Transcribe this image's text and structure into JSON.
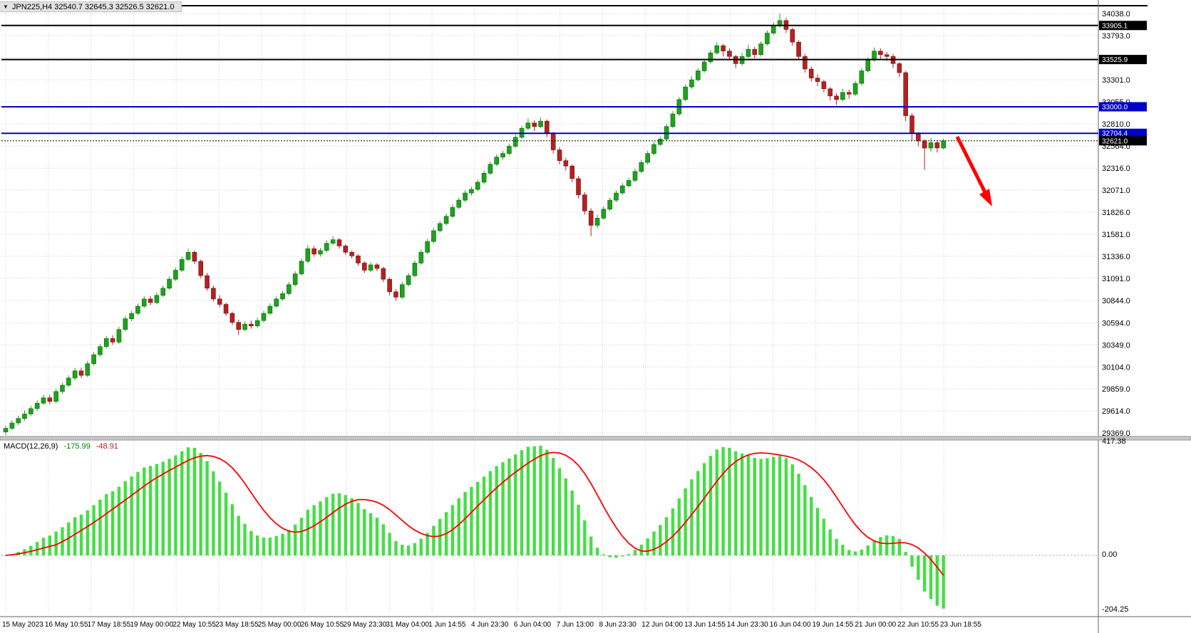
{
  "window": {
    "symbol": "JPN225",
    "timeframe": "H4",
    "symbol_readout": "JPN225,H4  32540.7 32645.3 32526.5 32621.0",
    "ohlc_readout": {
      "open": "32540.7",
      "high": "32645.3",
      "low": "32526.5",
      "close": "32621.0"
    }
  },
  "colors": {
    "background": "#FFFFFF",
    "grid": "#CFCFCF",
    "axis_text": "#000000",
    "bull": "#1FA11F",
    "bull_border": "#0B6B0B",
    "bear": "#B22222",
    "bear_border": "#7A1515",
    "macd_histogram": "#45DE45",
    "macd_signal": "#FF0000",
    "level_blue": "#0000C8",
    "level_black": "#000000",
    "arrow": "#FF0000"
  },
  "price_axis": {
    "ticks": [
      "34038.0",
      "33793.0",
      "33547.0",
      "33301.0",
      "33055.0",
      "32810.0",
      "32564.0",
      "32316.0",
      "32071.0",
      "31826.0",
      "31581.0",
      "31336.0",
      "31091.0",
      "30844.0",
      "30594.0",
      "30349.0",
      "30104.0",
      "29859.0",
      "29614.0",
      "29369.0"
    ]
  },
  "time_axis": [
    "15 May 2023",
    "16 May 10:55",
    "17 May 18:55",
    "19 May 00:00",
    "22 May 10:55",
    "23 May 18:55",
    "25 May 00:00",
    "26 May 10:55",
    "29 May 23:30",
    "31 May 04:00",
    "1 Jun 14:55",
    "4 Jun 23:30",
    "6 Jun 04:00",
    "7 Jun 13:00",
    "8 Jun 23:30",
    "12 Jun 04:00",
    "13 Jun 14:55",
    "14 Jun 23:30",
    "16 Jun 04:00",
    "19 Jun 14:55",
    "21 Jun 00:00",
    "22 Jun 10:55",
    "23 Jun 18:55"
  ],
  "chart_data": [
    {
      "type": "candlestick",
      "title": "JPN225,H4",
      "ylabel": "price",
      "y_range": [
        29330,
        34160
      ],
      "grid": true,
      "ohlc": [
        [
          29380,
          29450,
          29340,
          29420
        ],
        [
          29420,
          29510,
          29400,
          29480
        ],
        [
          29480,
          29560,
          29455,
          29530
        ],
        [
          29530,
          29620,
          29505,
          29580
        ],
        [
          29580,
          29670,
          29560,
          29640
        ],
        [
          29640,
          29730,
          29615,
          29700
        ],
        [
          29700,
          29795,
          29680,
          29760
        ],
        [
          29760,
          29790,
          29690,
          29720
        ],
        [
          29720,
          29860,
          29700,
          29830
        ],
        [
          29830,
          29930,
          29805,
          29900
        ],
        [
          29900,
          30010,
          29880,
          29980
        ],
        [
          29980,
          30090,
          29955,
          30060
        ],
        [
          30060,
          30095,
          29980,
          30010
        ],
        [
          30010,
          30170,
          29990,
          30140
        ],
        [
          30140,
          30270,
          30120,
          30240
        ],
        [
          30240,
          30360,
          30220,
          30330
        ],
        [
          30330,
          30450,
          30310,
          30420
        ],
        [
          30420,
          30455,
          30350,
          30380
        ],
        [
          30380,
          30550,
          30360,
          30520
        ],
        [
          30520,
          30670,
          30500,
          30640
        ],
        [
          30640,
          30730,
          30615,
          30700
        ],
        [
          30700,
          30810,
          30680,
          30780
        ],
        [
          30780,
          30890,
          30760,
          30860
        ],
        [
          30860,
          30895,
          30790,
          30820
        ],
        [
          30820,
          30930,
          30800,
          30900
        ],
        [
          30900,
          31010,
          30880,
          30980
        ],
        [
          30980,
          31110,
          30960,
          31080
        ],
        [
          31080,
          31210,
          31060,
          31180
        ],
        [
          31180,
          31330,
          31160,
          31300
        ],
        [
          31300,
          31420,
          31280,
          31380
        ],
        [
          31380,
          31400,
          31250,
          31280
        ],
        [
          31280,
          31300,
          31090,
          31120
        ],
        [
          31120,
          31150,
          30950,
          30980
        ],
        [
          30980,
          31010,
          30830,
          30860
        ],
        [
          30860,
          30900,
          30770,
          30800
        ],
        [
          30800,
          30820,
          30670,
          30700
        ],
        [
          30700,
          30720,
          30570,
          30600
        ],
        [
          30600,
          30630,
          30460,
          30520
        ],
        [
          30520,
          30610,
          30500,
          30580
        ],
        [
          30580,
          30620,
          30530,
          30560
        ],
        [
          30560,
          30650,
          30540,
          30620
        ],
        [
          30620,
          30730,
          30600,
          30700
        ],
        [
          30700,
          30810,
          30685,
          30780
        ],
        [
          30780,
          30890,
          30760,
          30860
        ],
        [
          30860,
          30950,
          30840,
          30920
        ],
        [
          30920,
          31050,
          30900,
          31020
        ],
        [
          31020,
          31170,
          31000,
          31140
        ],
        [
          31140,
          31310,
          31120,
          31280
        ],
        [
          31280,
          31460,
          31260,
          31420
        ],
        [
          31420,
          31450,
          31330,
          31360
        ],
        [
          31360,
          31430,
          31330,
          31400
        ],
        [
          31400,
          31510,
          31380,
          31480
        ],
        [
          31480,
          31560,
          31460,
          31520
        ],
        [
          31520,
          31540,
          31420,
          31450
        ],
        [
          31450,
          31470,
          31350,
          31380
        ],
        [
          31380,
          31400,
          31310,
          31340
        ],
        [
          31340,
          31360,
          31230,
          31260
        ],
        [
          31260,
          31280,
          31150,
          31180
        ],
        [
          31180,
          31270,
          31160,
          31240
        ],
        [
          31240,
          31260,
          31170,
          31200
        ],
        [
          31200,
          31220,
          31050,
          31080
        ],
        [
          31080,
          31100,
          30900,
          30940
        ],
        [
          30940,
          30970,
          30840,
          30880
        ],
        [
          30880,
          31050,
          30860,
          31020
        ],
        [
          31020,
          31150,
          31000,
          31120
        ],
        [
          31120,
          31290,
          31100,
          31260
        ],
        [
          31260,
          31410,
          31240,
          31380
        ],
        [
          31380,
          31530,
          31360,
          31500
        ],
        [
          31500,
          31650,
          31480,
          31620
        ],
        [
          31620,
          31730,
          31600,
          31700
        ],
        [
          31700,
          31810,
          31680,
          31780
        ],
        [
          31780,
          31910,
          31760,
          31880
        ],
        [
          31880,
          31990,
          31860,
          31960
        ],
        [
          31960,
          32070,
          31940,
          32040
        ],
        [
          32040,
          32110,
          32010,
          32080
        ],
        [
          32080,
          32190,
          32060,
          32160
        ],
        [
          32160,
          32290,
          32140,
          32260
        ],
        [
          32260,
          32390,
          32240,
          32360
        ],
        [
          32360,
          32470,
          32340,
          32440
        ],
        [
          32440,
          32510,
          32410,
          32480
        ],
        [
          32480,
          32590,
          32460,
          32560
        ],
        [
          32560,
          32690,
          32540,
          32660
        ],
        [
          32660,
          32790,
          32640,
          32760
        ],
        [
          32760,
          32870,
          32740,
          32820
        ],
        [
          32820,
          32850,
          32730,
          32780
        ],
        [
          32780,
          32880,
          32760,
          32840
        ],
        [
          32840,
          32860,
          32660,
          32700
        ],
        [
          32700,
          32720,
          32480,
          32520
        ],
        [
          32520,
          32550,
          32360,
          32400
        ],
        [
          32400,
          32430,
          32290,
          32340
        ],
        [
          32340,
          32360,
          32160,
          32200
        ],
        [
          32200,
          32230,
          31980,
          32020
        ],
        [
          32020,
          32050,
          31800,
          31840
        ],
        [
          31840,
          31870,
          31560,
          31680
        ],
        [
          31680,
          31800,
          31650,
          31760
        ],
        [
          31760,
          31890,
          31740,
          31860
        ],
        [
          31860,
          31990,
          31840,
          31960
        ],
        [
          31960,
          32070,
          31940,
          32040
        ],
        [
          32040,
          32150,
          32020,
          32120
        ],
        [
          32120,
          32210,
          32100,
          32180
        ],
        [
          32180,
          32310,
          32160,
          32280
        ],
        [
          32280,
          32410,
          32260,
          32380
        ],
        [
          32380,
          32510,
          32360,
          32480
        ],
        [
          32480,
          32610,
          32460,
          32580
        ],
        [
          32580,
          32670,
          32560,
          32640
        ],
        [
          32640,
          32810,
          32620,
          32780
        ],
        [
          32780,
          32950,
          32760,
          32920
        ],
        [
          32920,
          33110,
          32900,
          33080
        ],
        [
          33080,
          33250,
          33060,
          33220
        ],
        [
          33220,
          33340,
          33200,
          33300
        ],
        [
          33300,
          33430,
          33280,
          33400
        ],
        [
          33400,
          33530,
          33380,
          33500
        ],
        [
          33500,
          33630,
          33480,
          33600
        ],
        [
          33600,
          33720,
          33580,
          33680
        ],
        [
          33680,
          33700,
          33560,
          33620
        ],
        [
          33620,
          33650,
          33520,
          33560
        ],
        [
          33560,
          33580,
          33430,
          33480
        ],
        [
          33480,
          33600,
          33460,
          33560
        ],
        [
          33560,
          33690,
          33540,
          33640
        ],
        [
          33640,
          33670,
          33540,
          33580
        ],
        [
          33580,
          33730,
          33560,
          33700
        ],
        [
          33700,
          33850,
          33680,
          33820
        ],
        [
          33820,
          33940,
          33800,
          33900
        ],
        [
          33900,
          34038,
          33880,
          33960
        ],
        [
          33960,
          33990,
          33820,
          33860
        ],
        [
          33860,
          33880,
          33680,
          33720
        ],
        [
          33720,
          33740,
          33520,
          33560
        ],
        [
          33560,
          33590,
          33380,
          33420
        ],
        [
          33420,
          33450,
          33280,
          33320
        ],
        [
          33320,
          33360,
          33230,
          33280
        ],
        [
          33280,
          33300,
          33160,
          33200
        ],
        [
          33200,
          33220,
          33070,
          33120
        ],
        [
          33120,
          33150,
          33020,
          33080
        ],
        [
          33080,
          33200,
          33060,
          33160
        ],
        [
          33160,
          33190,
          33090,
          33140
        ],
        [
          33140,
          33290,
          33120,
          33260
        ],
        [
          33260,
          33430,
          33240,
          33400
        ],
        [
          33400,
          33550,
          33380,
          33520
        ],
        [
          33520,
          33660,
          33500,
          33620
        ],
        [
          33620,
          33650,
          33530,
          33580
        ],
        [
          33580,
          33610,
          33510,
          33560
        ],
        [
          33560,
          33590,
          33430,
          33480
        ],
        [
          33480,
          33500,
          33330,
          33380
        ],
        [
          33380,
          33400,
          32840,
          32900
        ],
        [
          32900,
          32930,
          32620,
          32700
        ],
        [
          32700,
          32720,
          32560,
          32620
        ],
        [
          32620,
          32640,
          32300,
          32540
        ],
        [
          32540,
          32650,
          32500,
          32600
        ],
        [
          32600,
          32620,
          32490,
          32541
        ],
        [
          32540.7,
          32645.3,
          32526.5,
          32621.0
        ]
      ],
      "levels": [
        {
          "label": "33905.1",
          "price": 33905.1,
          "color": "#000000",
          "line_style": "solid",
          "width": 2
        },
        {
          "label": "33525.9",
          "price": 33525.9,
          "color": "#000000",
          "line_style": "solid",
          "width": 2
        },
        {
          "label": "33000.0",
          "price": 33000.0,
          "color": "#0000C8",
          "line_style": "solid",
          "width": 2
        },
        {
          "label": "32704.4",
          "price": 32704.4,
          "color": "#0000C8",
          "line_style": "solid",
          "width": 2
        },
        {
          "label": "32621.0",
          "price": 32621.0,
          "color": "#000000",
          "line_style": "dotted",
          "width": 1,
          "role": "current-price"
        }
      ],
      "annotations": [
        {
          "type": "arrow",
          "color": "#FF0000",
          "direction": "down-right",
          "from_price": 32700,
          "to_price": 31950
        }
      ]
    },
    {
      "type": "bar",
      "name": "MACD",
      "label": "MACD(12,26,9)",
      "macd_display": "-175.99",
      "signal_display": "-48.91",
      "scale_labels": [
        "417.38",
        "0.00",
        "-204.25"
      ],
      "y_ticks": [
        417.38,
        0.0,
        -204.25
      ],
      "histogram_color": "#45DE45",
      "signal_color": "#FF0000"
    }
  ]
}
